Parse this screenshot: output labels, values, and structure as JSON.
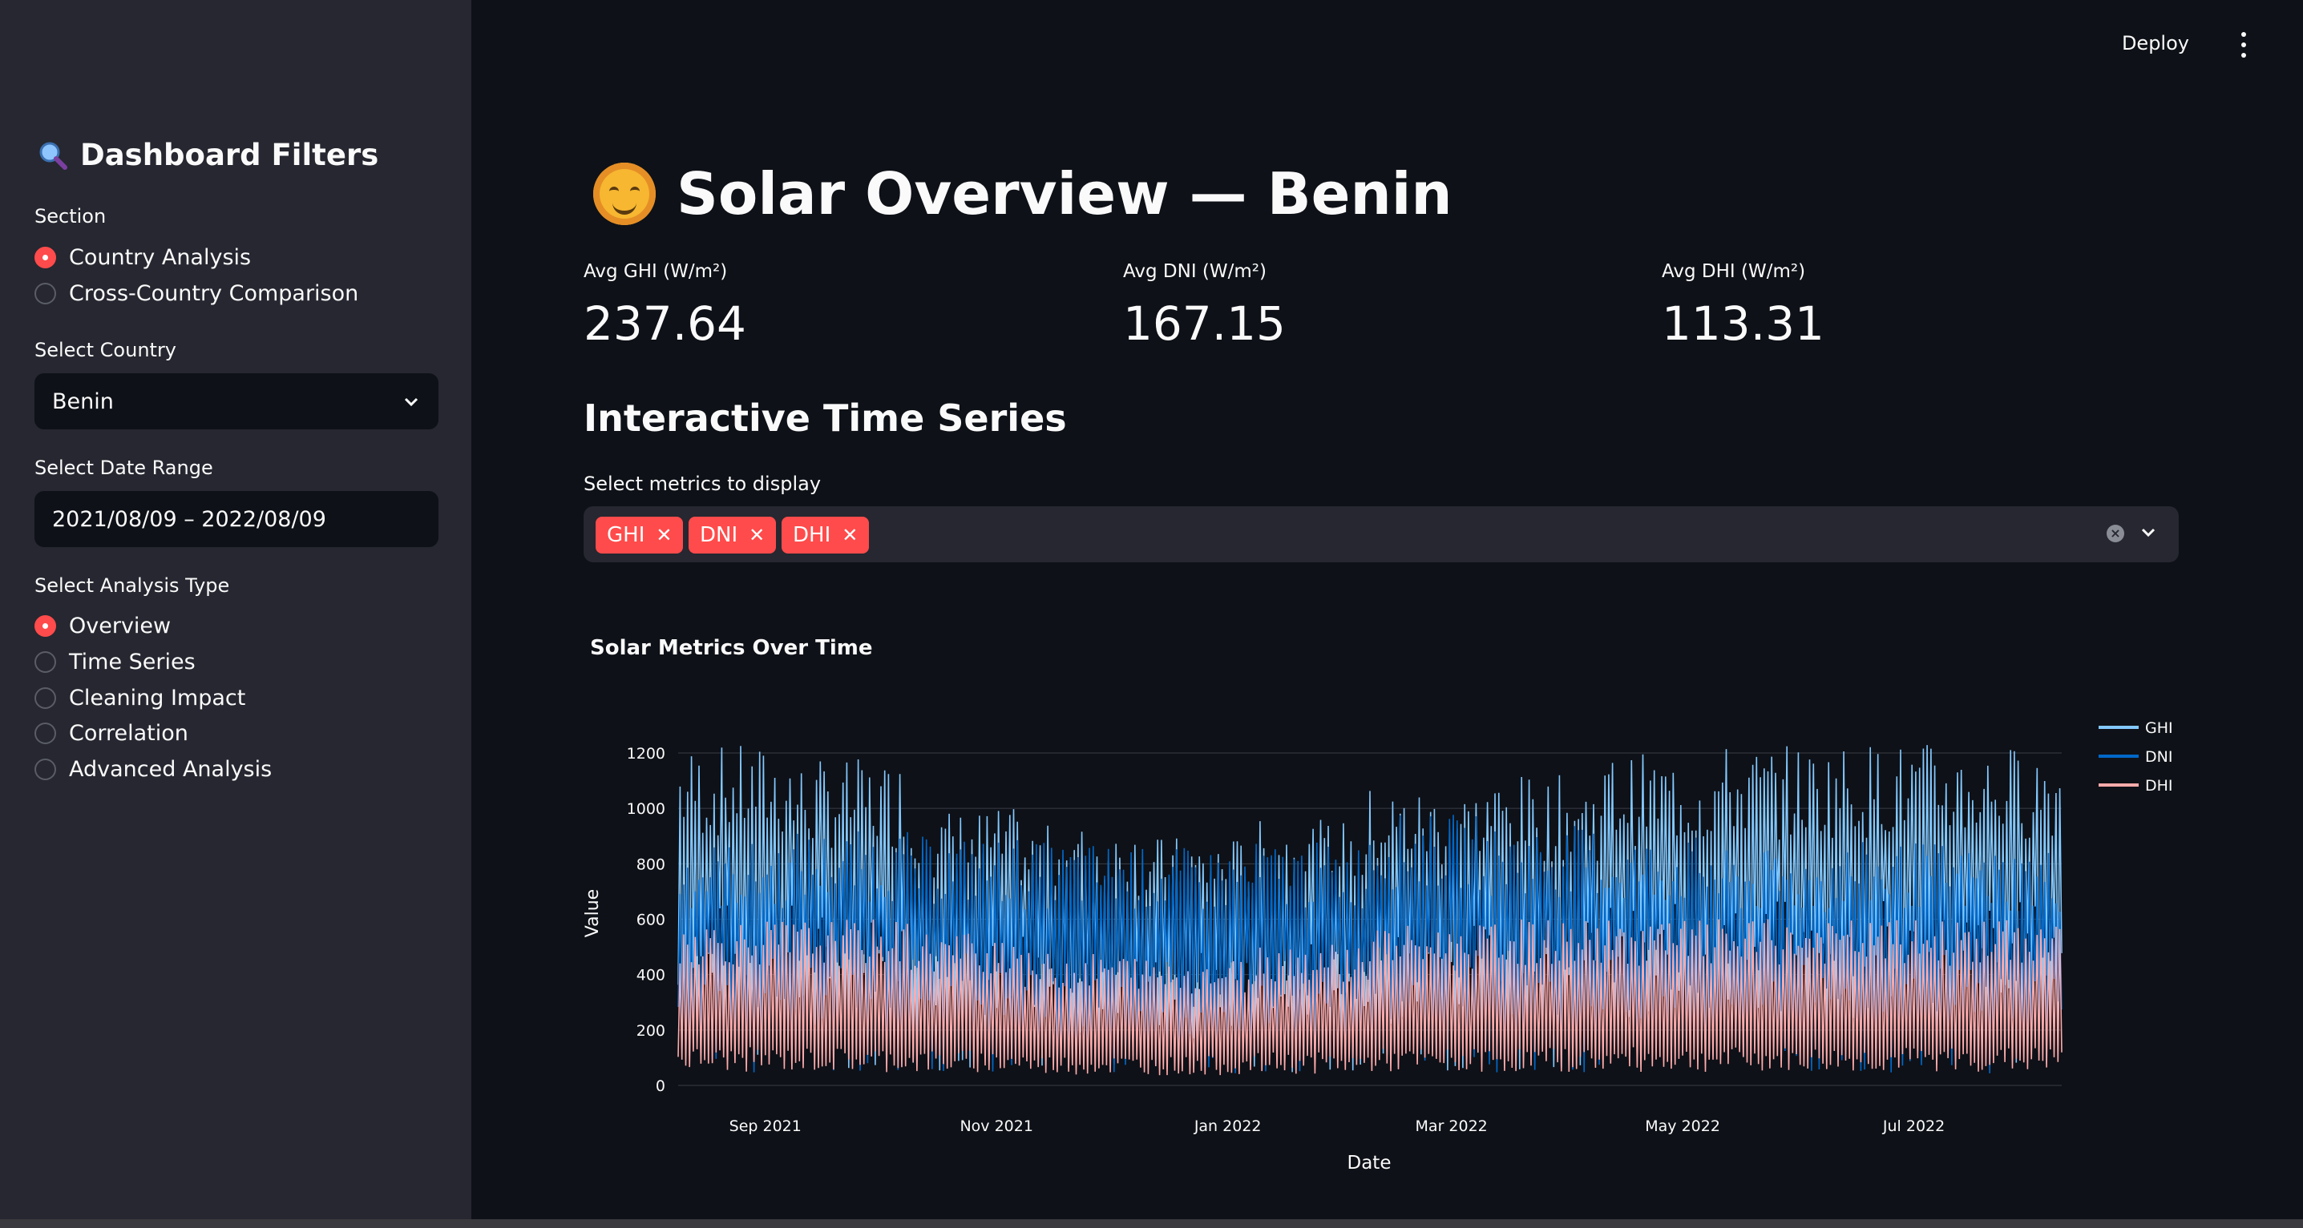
{
  "sidebar": {
    "title": "Dashboard Filters",
    "title_icon": "magnifier-icon",
    "section_label": "Section",
    "section_options": [
      {
        "label": "Country Analysis",
        "selected": true
      },
      {
        "label": "Cross-Country Comparison",
        "selected": false
      }
    ],
    "country_label": "Select Country",
    "country_value": "Benin",
    "date_label": "Select Date Range",
    "date_value": "2021/08/09 – 2022/08/09",
    "analysis_label": "Select Analysis Type",
    "analysis_options": [
      {
        "label": "Overview",
        "selected": true
      },
      {
        "label": "Time Series",
        "selected": false
      },
      {
        "label": "Cleaning Impact",
        "selected": false
      },
      {
        "label": "Correlation",
        "selected": false
      },
      {
        "label": "Advanced Analysis",
        "selected": false
      }
    ]
  },
  "header": {
    "deploy_label": "Deploy"
  },
  "main": {
    "title": "Solar Overview — Benin",
    "metrics": [
      {
        "label": "Avg GHI (W/m²)",
        "value": "237.64"
      },
      {
        "label": "Avg DNI (W/m²)",
        "value": "167.15"
      },
      {
        "label": "Avg DHI (W/m²)",
        "value": "113.31"
      }
    ],
    "section_title": "Interactive Time Series",
    "multiselect_label": "Select metrics to display",
    "selected_metrics": [
      "GHI",
      "DNI",
      "DHI"
    ]
  },
  "colors": {
    "accent": "#ff4b4b",
    "ghi": "#83c9ff",
    "dni": "#0068c9",
    "dhi": "#ffabab"
  },
  "chart_data": {
    "type": "line",
    "title": "Solar Metrics Over Time",
    "xlabel": "Date",
    "ylabel": "Value",
    "ylim": [
      0,
      1200
    ],
    "xlim": [
      "2021-08-09",
      "2022-08-09"
    ],
    "x_ticks": [
      "Sep 2021",
      "Nov 2021",
      "Jan 2022",
      "Mar 2022",
      "May 2022",
      "Jul 2022"
    ],
    "y_ticks": [
      0,
      200,
      400,
      600,
      800,
      1000,
      1200
    ],
    "legend_position": "top-right",
    "series": [
      {
        "name": "GHI",
        "color": "#83c9ff",
        "monthly_peak": [
          1230,
          1180,
          1000,
          940,
          900,
          960,
          1080,
          1120,
          1200,
          1230,
          1240,
          1230
        ],
        "monthly_trough": [
          0,
          0,
          0,
          0,
          0,
          0,
          0,
          0,
          0,
          0,
          0,
          0
        ]
      },
      {
        "name": "DNI",
        "color": "#0068c9",
        "monthly_peak": [
          880,
          920,
          900,
          880,
          860,
          880,
          980,
          940,
          900,
          850,
          880,
          860
        ],
        "monthly_trough": [
          0,
          0,
          0,
          0,
          0,
          0,
          0,
          0,
          0,
          0,
          0,
          0
        ]
      },
      {
        "name": "DHI",
        "color": "#ffabab",
        "monthly_peak": [
          600,
          600,
          560,
          480,
          460,
          520,
          580,
          600,
          600,
          600,
          600,
          600
        ],
        "monthly_trough": [
          0,
          0,
          0,
          0,
          0,
          0,
          0,
          0,
          0,
          0,
          0,
          0
        ]
      }
    ]
  }
}
